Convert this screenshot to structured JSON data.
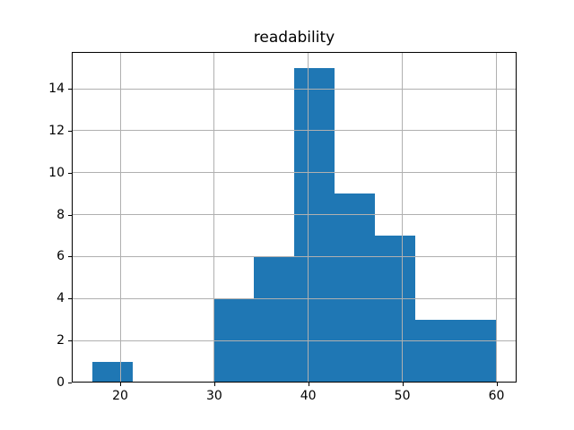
{
  "chart_data": {
    "type": "bar",
    "subtype": "histogram",
    "title": "readability",
    "xlabel": "",
    "ylabel": "",
    "bin_edges": [
      17.0,
      21.3,
      25.6,
      29.9,
      34.2,
      38.5,
      42.8,
      47.1,
      51.4,
      55.7,
      60.0
    ],
    "counts": [
      1,
      0,
      0,
      4,
      6,
      15,
      9,
      7,
      3,
      3
    ],
    "xticks": [
      20,
      30,
      40,
      50,
      60
    ],
    "yticks": [
      0,
      2,
      4,
      6,
      8,
      10,
      12,
      14
    ],
    "xlim": [
      14.85,
      62.15
    ],
    "ylim": [
      0,
      15.75
    ],
    "grid": true,
    "grid_position": "above-bars",
    "legend": "none",
    "bar_color": "#1f77b4",
    "grid_color": "#b0b0b0",
    "axis_color": "#000000",
    "text_color": "#000000",
    "background": "#ffffff"
  }
}
